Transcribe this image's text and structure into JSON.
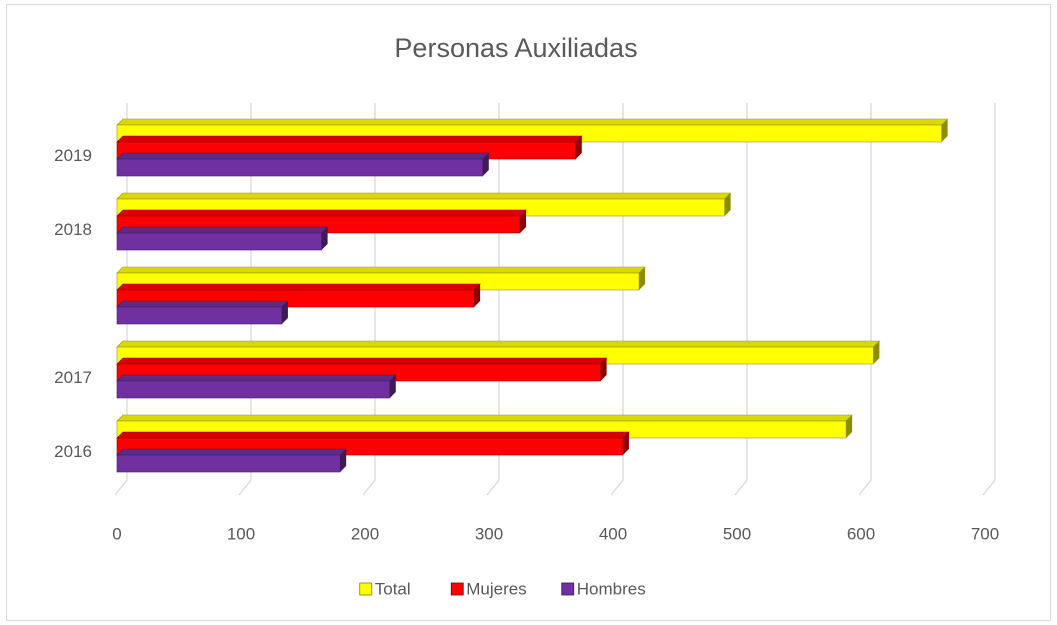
{
  "chart_data": {
    "type": "bar",
    "orientation": "horizontal",
    "title": "Personas Auxiliadas",
    "categories": [
      "2019",
      "2018",
      null,
      "2017",
      "2016"
    ],
    "series": [
      {
        "name": "Total",
        "color": "#ffff00",
        "values": [
          665,
          490,
          421,
          610,
          588
        ]
      },
      {
        "name": "Mujeres",
        "color": "#ff0000",
        "values": [
          370,
          325,
          288,
          390,
          408
        ]
      },
      {
        "name": "Hombres",
        "color": "#7030a0",
        "values": [
          295,
          165,
          133,
          220,
          180
        ]
      }
    ],
    "xlim": [
      0,
      700
    ],
    "xticks": [
      0,
      100,
      200,
      300,
      400,
      500,
      600,
      700
    ],
    "grid": true,
    "legend": "bottom"
  }
}
